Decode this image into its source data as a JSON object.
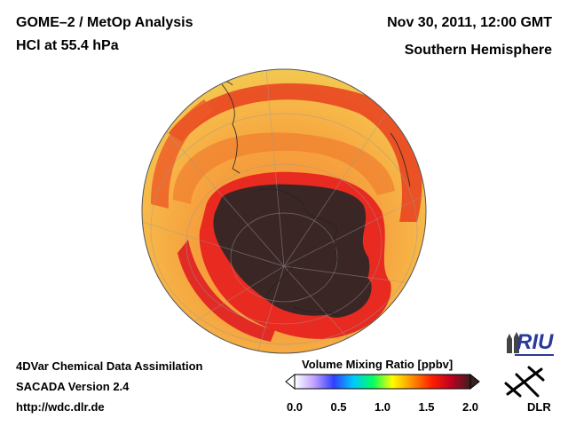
{
  "header": {
    "title_line1": "GOME–2 / MetOp Analysis",
    "title_line2": "HCl at 55.4 hPa",
    "date": "Nov 30, 2011, 12:00 GMT",
    "region": "Southern Hemisphere"
  },
  "footer": {
    "line1": "4DVar Chemical Data Assimilation",
    "line2": "SACADA Version 2.4",
    "url": "http://wdc.dlr.de"
  },
  "colorbar": {
    "title": "Volume Mixing Ratio [ppbv]",
    "ticks": [
      "0.0",
      "0.5",
      "1.0",
      "1.5",
      "2.0"
    ],
    "range": [
      0.0,
      2.0
    ],
    "colors": [
      "#ffffff",
      "#c0a0ff",
      "#3040ff",
      "#00c8ff",
      "#00ff60",
      "#ffff00",
      "#ff9000",
      "#ff2000",
      "#c00020",
      "#3a2020"
    ]
  },
  "logos": {
    "riu": "RIU",
    "dlr": "DLR"
  },
  "map": {
    "projection": "orthographic-south-polar",
    "field_colors": {
      "low": "#3b2626",
      "mid_red": "#e83020",
      "orange": "#f7a040",
      "yellow": "#f8c850"
    }
  }
}
